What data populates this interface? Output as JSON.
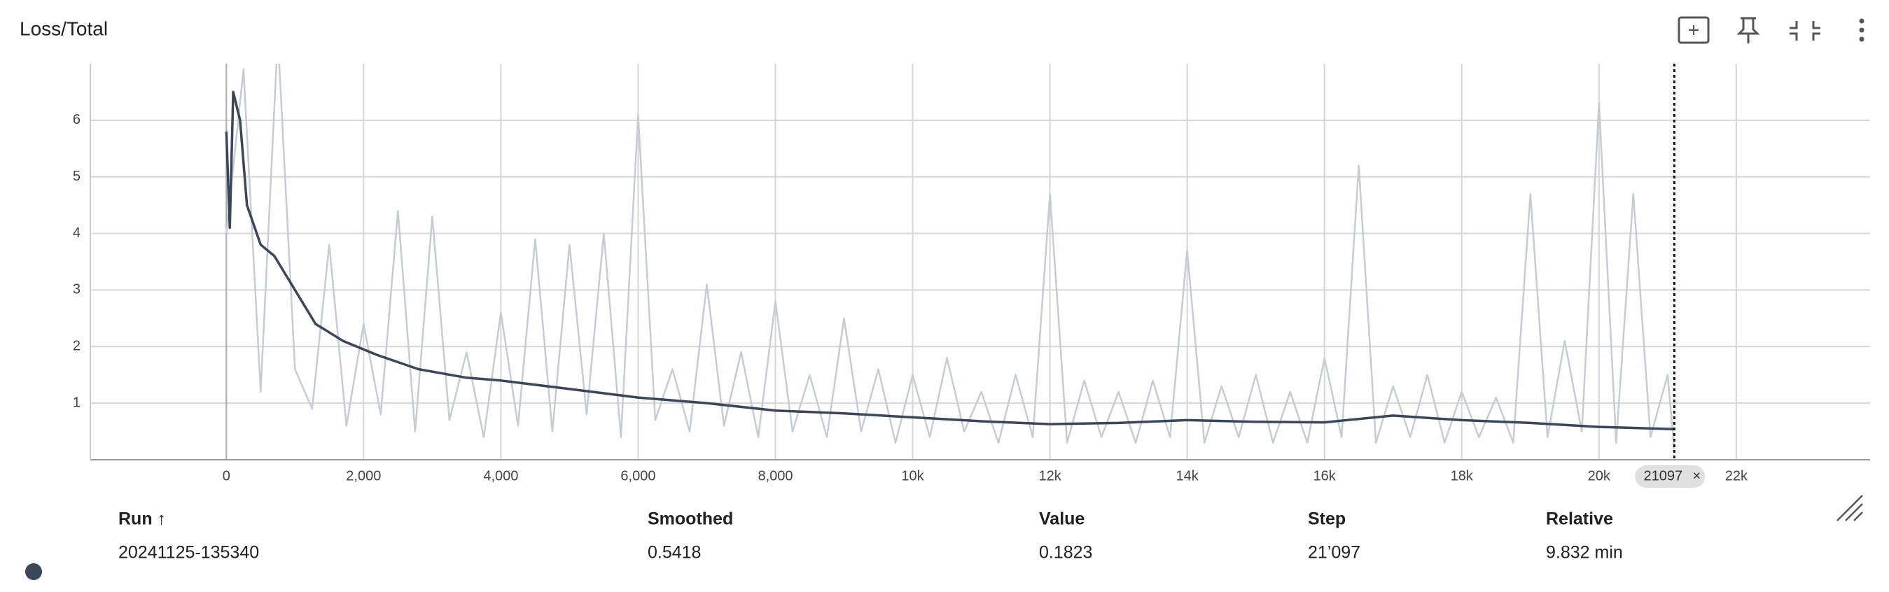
{
  "header": {
    "title": "Loss/Total"
  },
  "chart_data": {
    "type": "line",
    "xlim": [
      -1982,
      23950
    ],
    "ylim": [
      0,
      7
    ],
    "xticks": [
      0,
      {
        "value": 2000,
        "label": "2,000"
      },
      {
        "value": 4000,
        "label": "4,000"
      },
      {
        "value": 6000,
        "label": "6,000"
      },
      {
        "value": 8000,
        "label": "8,000"
      },
      {
        "value": 10000,
        "label": "10k"
      },
      {
        "value": 12000,
        "label": "12k"
      },
      {
        "value": 14000,
        "label": "14k"
      },
      {
        "value": 16000,
        "label": "16k"
      },
      {
        "value": 18000,
        "label": "18k"
      },
      {
        "value": 20000,
        "label": "20k"
      },
      {
        "value": 22000,
        "label": "22k"
      }
    ],
    "yticks": [
      1,
      2,
      3,
      4,
      5,
      6
    ],
    "grid": true,
    "cursor": 21097,
    "series": [
      {
        "color": "#c6ccd6",
        "x": [
          0,
          250,
          500,
          750,
          1000,
          1250,
          1500,
          1750,
          2000,
          2250,
          2500,
          2750,
          3000,
          3250,
          3500,
          3750,
          4000,
          4250,
          4500,
          4750,
          5000,
          5250,
          5500,
          5750,
          6000,
          6250,
          6500,
          6750,
          7000,
          7250,
          7500,
          7750,
          8000,
          8250,
          8500,
          8750,
          9000,
          9250,
          9500,
          9750,
          10000,
          10250,
          10500,
          10750,
          11000,
          11250,
          11500,
          11750,
          12000,
          12250,
          12500,
          12750,
          13000,
          13250,
          13500,
          13750,
          14000,
          14250,
          14500,
          14750,
          15000,
          15250,
          15500,
          15750,
          16000,
          16250,
          16500,
          16750,
          17000,
          17250,
          17500,
          17750,
          18000,
          18250,
          18500,
          18750,
          19000,
          19250,
          19500,
          19750,
          20000,
          20250,
          20500,
          20750,
          21000,
          21097
        ],
        "values": [
          4.0,
          6.9,
          1.2,
          7.5,
          1.6,
          0.9,
          3.8,
          0.6,
          2.4,
          0.8,
          4.4,
          0.5,
          4.3,
          0.7,
          1.9,
          0.4,
          2.6,
          0.6,
          3.9,
          0.5,
          3.8,
          0.8,
          4.0,
          0.4,
          6.1,
          0.7,
          1.6,
          0.5,
          3.1,
          0.6,
          1.9,
          0.4,
          2.8,
          0.5,
          1.5,
          0.4,
          2.5,
          0.5,
          1.6,
          0.3,
          1.5,
          0.4,
          1.8,
          0.5,
          1.2,
          0.3,
          1.5,
          0.4,
          4.7,
          0.3,
          1.4,
          0.4,
          1.2,
          0.3,
          1.4,
          0.4,
          3.7,
          0.3,
          1.3,
          0.4,
          1.5,
          0.3,
          1.2,
          0.3,
          1.8,
          0.4,
          5.2,
          0.3,
          1.3,
          0.4,
          1.5,
          0.3,
          1.2,
          0.4,
          1.1,
          0.3,
          4.7,
          0.4,
          2.1,
          0.5,
          6.3,
          0.3,
          4.7,
          0.4,
          1.5,
          0.1823
        ]
      },
      {
        "color": "#3b4659",
        "x": [
          0,
          50,
          100,
          200,
          300,
          500,
          700,
          1000,
          1300,
          1700,
          2200,
          2800,
          3500,
          4000,
          5000,
          6000,
          7000,
          8000,
          9000,
          10000,
          11000,
          12000,
          13000,
          14000,
          15000,
          16000,
          17000,
          18000,
          19000,
          20000,
          21097
        ],
        "values": [
          5.8,
          4.1,
          6.5,
          6.0,
          4.5,
          3.8,
          3.6,
          3.0,
          2.4,
          2.1,
          1.85,
          1.6,
          1.45,
          1.4,
          1.25,
          1.1,
          1.0,
          0.87,
          0.82,
          0.75,
          0.68,
          0.63,
          0.65,
          0.7,
          0.67,
          0.66,
          0.78,
          0.7,
          0.65,
          0.58,
          0.5418
        ]
      }
    ]
  },
  "table": {
    "columns": [
      "Run ↑",
      "Smoothed",
      "Value",
      "Step",
      "Relative"
    ],
    "rows": [
      [
        "20241125-135340",
        "0.5418",
        "0.1823",
        "21’097",
        "9.832 min"
      ]
    ]
  }
}
